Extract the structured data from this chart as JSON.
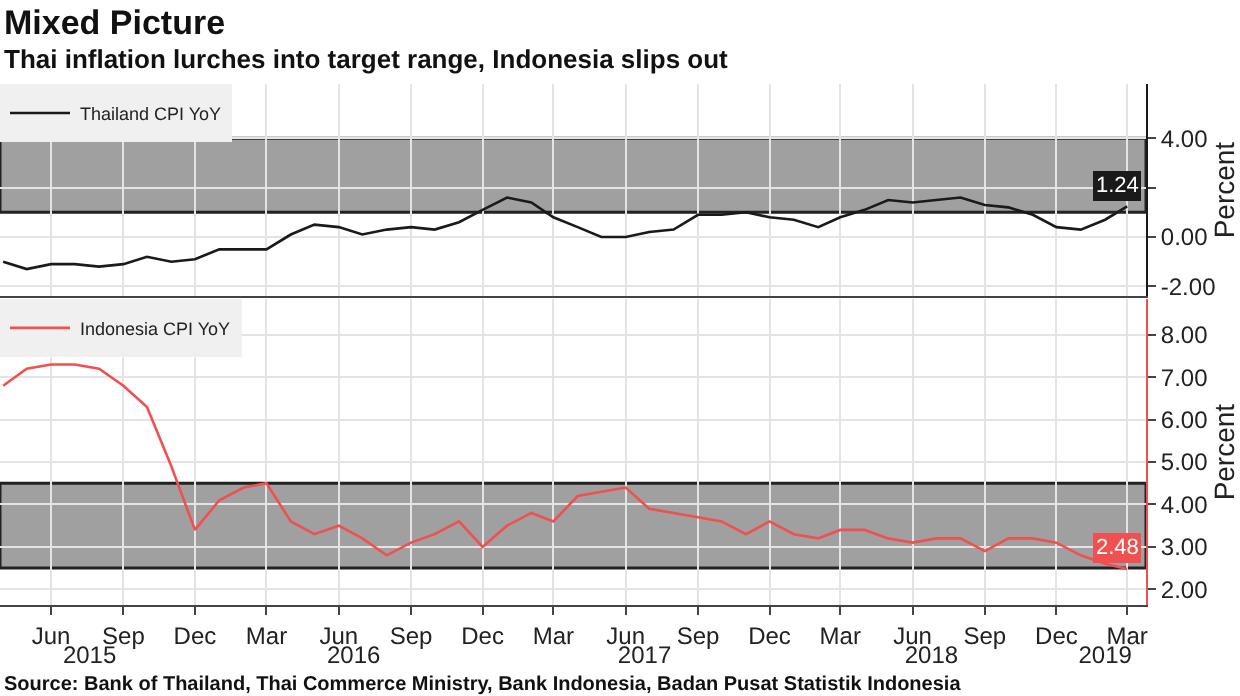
{
  "chart_data": [
    {
      "type": "line",
      "title": "Mixed Picture",
      "subtitle": "Thai inflation lurches into target range, Indonesia slips out",
      "ylabel": "Percent",
      "x": [
        "2015-04",
        "2015-05",
        "2015-06",
        "2015-07",
        "2015-08",
        "2015-09",
        "2015-10",
        "2015-11",
        "2015-12",
        "2016-01",
        "2016-02",
        "2016-03",
        "2016-04",
        "2016-05",
        "2016-06",
        "2016-07",
        "2016-08",
        "2016-09",
        "2016-10",
        "2016-11",
        "2016-12",
        "2017-01",
        "2017-02",
        "2017-03",
        "2017-04",
        "2017-05",
        "2017-06",
        "2017-07",
        "2017-08",
        "2017-09",
        "2017-10",
        "2017-11",
        "2017-12",
        "2018-01",
        "2018-02",
        "2018-03",
        "2018-04",
        "2018-05",
        "2018-06",
        "2018-07",
        "2018-08",
        "2018-09",
        "2018-10",
        "2018-11",
        "2018-12",
        "2019-01",
        "2019-02",
        "2019-03"
      ],
      "series": [
        {
          "name": "Thailand CPI YoY",
          "color": "#1a1a1a",
          "values": [
            -1.0,
            -1.3,
            -1.1,
            -1.1,
            -1.2,
            -1.1,
            -0.8,
            -1.0,
            -0.9,
            -0.5,
            -0.5,
            -0.5,
            0.1,
            0.5,
            0.4,
            0.1,
            0.3,
            0.4,
            0.3,
            0.6,
            1.1,
            1.6,
            1.4,
            0.8,
            0.4,
            0.0,
            0.0,
            0.2,
            0.3,
            0.9,
            0.9,
            1.0,
            0.8,
            0.7,
            0.4,
            0.8,
            1.1,
            1.5,
            1.4,
            1.5,
            1.6,
            1.3,
            1.2,
            0.9,
            0.4,
            0.3,
            0.7,
            1.24
          ],
          "value_labels": [
            null,
            null,
            null,
            null,
            null,
            null,
            null,
            null,
            null,
            null,
            null,
            null,
            null,
            null,
            null,
            null,
            null,
            null,
            null,
            null,
            null,
            null,
            null,
            null,
            null,
            null,
            null,
            null,
            null,
            null,
            null,
            null,
            null,
            null,
            null,
            null,
            null,
            null,
            null,
            null,
            null,
            null,
            null,
            null,
            null,
            null,
            null,
            "1.24"
          ]
        }
      ],
      "bands": [
        {
          "axis": "y",
          "from": 1,
          "to": 4,
          "color": "#a0a0a0"
        }
      ],
      "xlim": [
        "2015-03-28",
        "2019-03-25"
      ],
      "xticks": [
        {
          "value": "2015-06-01",
          "label": null
        },
        {
          "value": "2015-09-01",
          "label": null
        },
        {
          "value": "2015-12-01",
          "label": null
        },
        {
          "value": "2016-03-01",
          "label": null
        },
        {
          "value": "2016-06-01",
          "label": null
        },
        {
          "value": "2016-09-01",
          "label": null
        },
        {
          "value": "2016-12-01",
          "label": null
        },
        {
          "value": "2017-03-01",
          "label": null
        },
        {
          "value": "2017-06-01",
          "label": null
        },
        {
          "value": "2017-09-01",
          "label": null
        },
        {
          "value": "2017-12-01",
          "label": null
        },
        {
          "value": "2018-03-01",
          "label": null
        },
        {
          "value": "2018-06-01",
          "label": null
        },
        {
          "value": "2018-09-01",
          "label": null
        },
        {
          "value": "2018-12-01",
          "label": null
        },
        {
          "value": "2019-03-01",
          "label": null
        }
      ],
      "ylim": [
        -2.4,
        6.2
      ],
      "yticks": [
        {
          "value": -2,
          "label": "-2.00"
        },
        {
          "value": 0,
          "label": "0.00"
        },
        {
          "value": 2,
          "label": null
        },
        {
          "value": 4,
          "label": "4.00"
        }
      ],
      "grid": true,
      "legend": "top left",
      "tick_labels": "y"
    },
    {
      "type": "line",
      "ylabel": "Percent",
      "annotations": [
        "Source: Bank of Thailand, Thai Commerce Ministry, Bank Indonesia, Badan Pusat Statistik Indonesia"
      ],
      "x": [
        "2015-04",
        "2015-05",
        "2015-06",
        "2015-07",
        "2015-08",
        "2015-09",
        "2015-10",
        "2015-11",
        "2015-12",
        "2016-01",
        "2016-02",
        "2016-03",
        "2016-04",
        "2016-05",
        "2016-06",
        "2016-07",
        "2016-08",
        "2016-09",
        "2016-10",
        "2016-11",
        "2016-12",
        "2017-01",
        "2017-02",
        "2017-03",
        "2017-04",
        "2017-05",
        "2017-06",
        "2017-07",
        "2017-08",
        "2017-09",
        "2017-10",
        "2017-11",
        "2017-12",
        "2018-01",
        "2018-02",
        "2018-03",
        "2018-04",
        "2018-05",
        "2018-06",
        "2018-07",
        "2018-08",
        "2018-09",
        "2018-10",
        "2018-11",
        "2018-12",
        "2019-01",
        "2019-02",
        "2019-03"
      ],
      "series": [
        {
          "name": "Indonesia CPI YoY",
          "color": "#f0504f",
          "values": [
            6.8,
            7.2,
            7.3,
            7.3,
            7.2,
            6.8,
            6.3,
            4.9,
            3.4,
            4.1,
            4.4,
            4.5,
            3.6,
            3.3,
            3.5,
            3.2,
            2.8,
            3.1,
            3.3,
            3.6,
            3.0,
            3.5,
            3.8,
            3.6,
            4.2,
            4.3,
            4.4,
            3.9,
            3.8,
            3.7,
            3.6,
            3.3,
            3.6,
            3.3,
            3.2,
            3.4,
            3.4,
            3.2,
            3.1,
            3.2,
            3.2,
            2.9,
            3.2,
            3.2,
            3.1,
            2.8,
            2.6,
            2.48
          ],
          "value_labels": [
            null,
            null,
            null,
            null,
            null,
            null,
            null,
            null,
            null,
            null,
            null,
            null,
            null,
            null,
            null,
            null,
            null,
            null,
            null,
            null,
            null,
            null,
            null,
            null,
            null,
            null,
            null,
            null,
            null,
            null,
            null,
            null,
            null,
            null,
            null,
            null,
            null,
            null,
            null,
            null,
            null,
            null,
            null,
            null,
            null,
            null,
            null,
            "2.48"
          ]
        }
      ],
      "bands": [
        {
          "axis": "y",
          "from": 2.5,
          "to": 4.5,
          "color": "#a0a0a0"
        }
      ],
      "xlim": [
        "2015-03-28",
        "2019-03-25"
      ],
      "xticks": [
        {
          "value": "2015-06-01",
          "label": "Jun"
        },
        {
          "value": "2015-09-01",
          "label": "Sep"
        },
        {
          "value": "2015-12-01",
          "label": "Dec"
        },
        {
          "value": "2016-03-01",
          "label": "Mar"
        },
        {
          "value": "2016-06-01",
          "label": "Jun"
        },
        {
          "value": "2016-09-01",
          "label": "Sep"
        },
        {
          "value": "2016-12-01",
          "label": "Dec"
        },
        {
          "value": "2017-03-01",
          "label": "Mar"
        },
        {
          "value": "2017-06-01",
          "label": "Jun"
        },
        {
          "value": "2017-09-01",
          "label": "Sep"
        },
        {
          "value": "2017-12-01",
          "label": "Dec"
        },
        {
          "value": "2018-03-01",
          "label": "Mar"
        },
        {
          "value": "2018-06-01",
          "label": "Jun"
        },
        {
          "value": "2018-09-01",
          "label": "Sep"
        },
        {
          "value": "2018-12-01",
          "label": "Dec"
        },
        {
          "value": "2019-03-01",
          "label": "Mar"
        }
      ],
      "x2lim": [
        "2015-03-28",
        "2019-03-25"
      ],
      "x2ticks": [
        {
          "value": "2015-07-20",
          "label": "2015"
        },
        {
          "value": "2016-06-20",
          "label": "2016"
        },
        {
          "value": "2017-06-25",
          "label": "2017"
        },
        {
          "value": "2018-06-25",
          "label": "2018"
        },
        {
          "value": "2019-02-01",
          "label": "2019"
        }
      ],
      "ylim": [
        1.62,
        8.85
      ],
      "yticks": [
        {
          "value": 2,
          "label": "2.00"
        },
        {
          "value": 3,
          "label": "3.00"
        },
        {
          "value": 4,
          "label": "4.00"
        },
        {
          "value": 5,
          "label": "5.00"
        },
        {
          "value": 6,
          "label": "6.00"
        },
        {
          "value": 7,
          "label": "7.00"
        },
        {
          "value": 8,
          "label": "8.00"
        }
      ],
      "grid": true,
      "legend": "top left"
    }
  ]
}
